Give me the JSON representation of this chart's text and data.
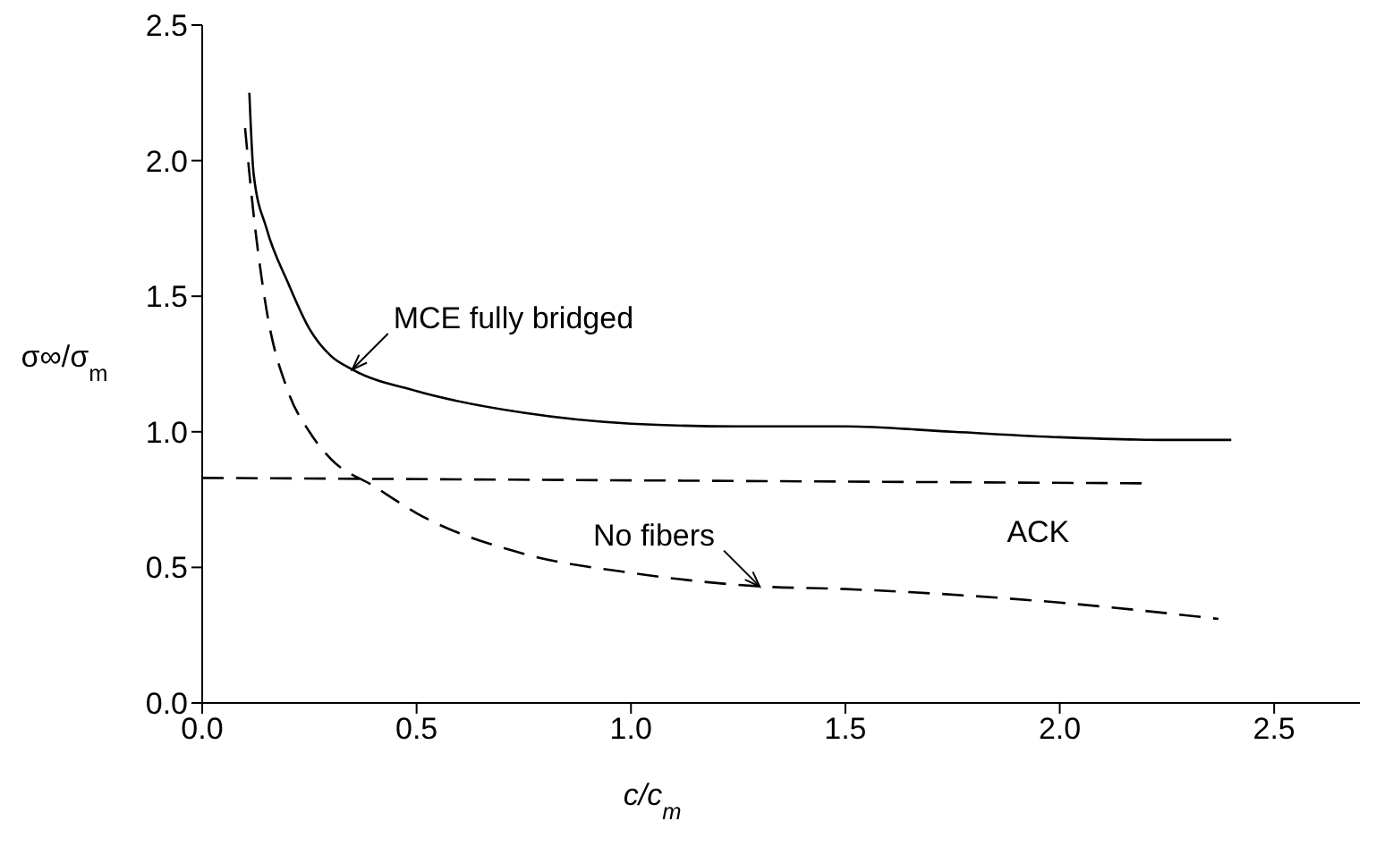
{
  "chart_data": {
    "type": "line",
    "xlabel": "c/c$_{m}$",
    "ylabel": "σ∞/σ$_{m}$",
    "xlim": [
      0,
      2.7
    ],
    "xticks": [
      {
        "value": 0,
        "label": "0.0"
      },
      {
        "value": 0.5,
        "label": "0.5"
      },
      {
        "value": 1,
        "label": "1.0"
      },
      {
        "value": 1.5,
        "label": "1.5"
      },
      {
        "value": 2,
        "label": "2.0"
      },
      {
        "value": 2.5,
        "label": "2.5"
      }
    ],
    "ylim": [
      0,
      2.5
    ],
    "yticks": [
      {
        "value": 0,
        "label": "0.0"
      },
      {
        "value": 0.5,
        "label": "0.5"
      },
      {
        "value": 1,
        "label": "1.0"
      },
      {
        "value": 1.5,
        "label": "1.5"
      },
      {
        "value": 2,
        "label": "2.0"
      },
      {
        "value": 2.5,
        "label": "2.5"
      }
    ],
    "grid": false,
    "legend": false,
    "marker": "none",
    "series": [
      {
        "color": "#000000",
        "line_style": "solid",
        "x": [
          0.11,
          0.12,
          0.15,
          0.2,
          0.25,
          0.3,
          0.35,
          0.5,
          0.75,
          1.0,
          1.25,
          1.5,
          1.75,
          2.0,
          2.25,
          2.4
        ],
        "values": [
          2.25,
          1.95,
          1.75,
          1.55,
          1.38,
          1.28,
          1.23,
          1.15,
          1.07,
          1.03,
          1.02,
          1.02,
          1.0,
          0.98,
          0.97,
          0.97
        ]
      },
      {
        "color": "#000000",
        "line_style": "dashed",
        "x": [
          0.1,
          0.12,
          0.15,
          0.2,
          0.25,
          0.3,
          0.4,
          0.5,
          0.75,
          1.0,
          1.3,
          1.5,
          2.0,
          2.37
        ],
        "values": [
          2.12,
          1.8,
          1.45,
          1.15,
          1.0,
          0.9,
          0.8,
          0.7,
          0.55,
          0.48,
          0.43,
          0.42,
          0.37,
          0.31
        ]
      },
      {
        "name": "ACK",
        "color": "#000000",
        "line_style": "dashed",
        "x": [
          0,
          2.2
        ],
        "values": [
          0.83,
          0.81
        ]
      }
    ],
    "annotations": [
      {
        "text": "MCE fully bridged",
        "x": 0.35,
        "y": 1.23
      },
      {
        "text": "No fibers",
        "x": 1.3,
        "y": 0.43
      }
    ]
  }
}
